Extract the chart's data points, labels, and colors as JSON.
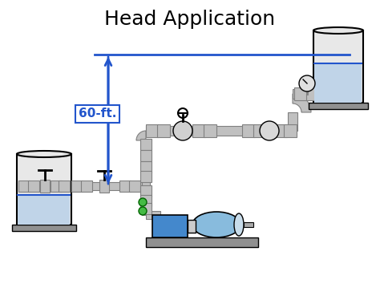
{
  "title": "Head Application",
  "title_fontsize": 18,
  "bg_color": "#ffffff",
  "blue_color": "#2255cc",
  "pipe_fill": "#c0c0c0",
  "pipe_edge": "#808080",
  "tank_fill": "#e8e8e8",
  "water_fill": "#c0d4e8",
  "pump_fill": "#4488cc",
  "motor_fill": "#88bbdd",
  "base_fill": "#909090",
  "green_color": "#44bb44",
  "label_60ft": "60-ft.",
  "label_fontsize": 11,
  "figsize": [
    4.74,
    3.54
  ],
  "dpi": 100
}
